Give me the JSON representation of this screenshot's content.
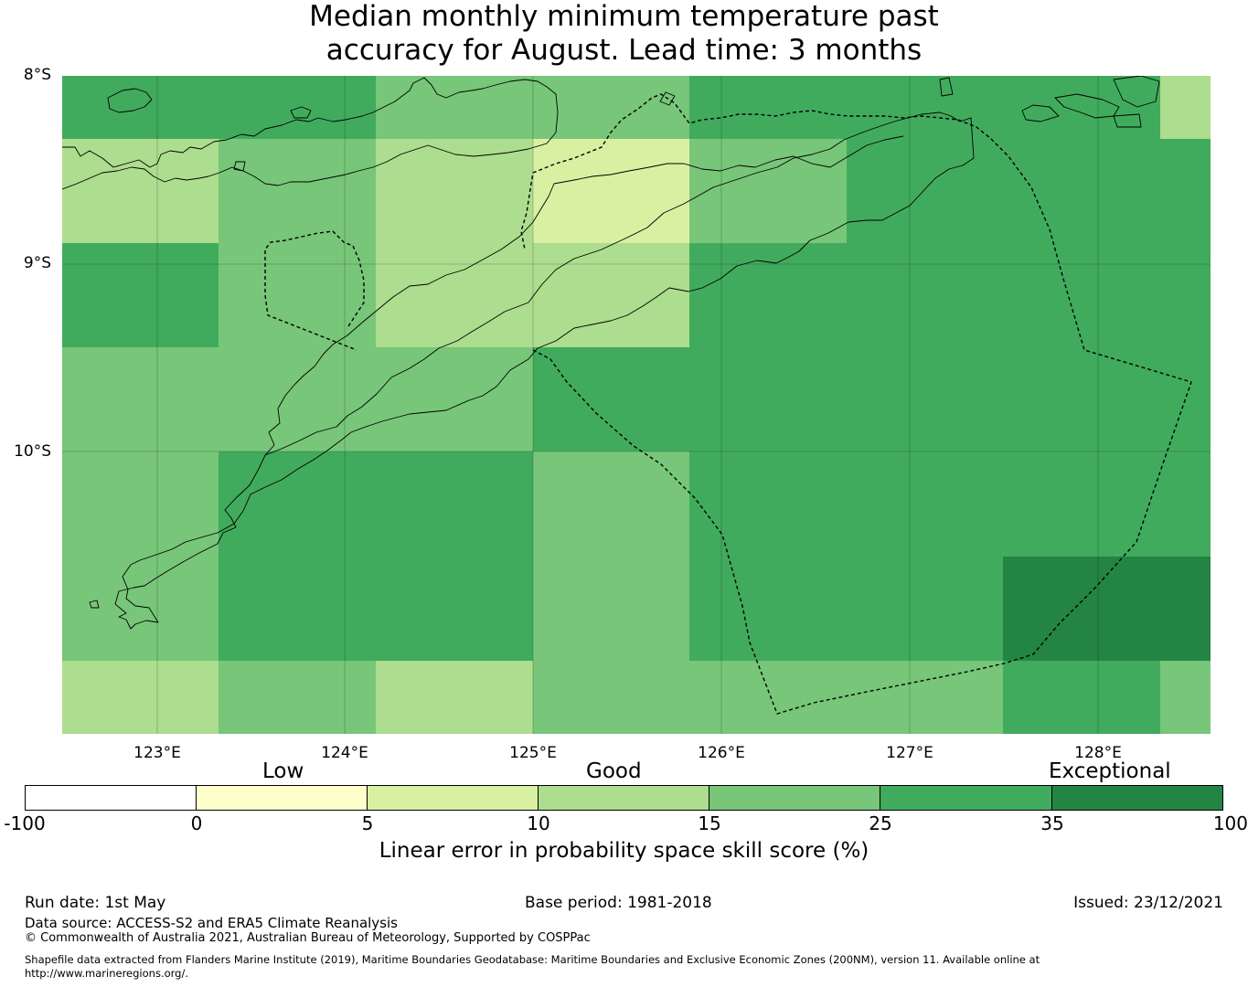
{
  "title_line1": "Median monthly minimum temperature past",
  "title_line2": "accuracy for August. Lead time: 3 months",
  "map": {
    "lat_labels": [
      "8°S",
      "9°S",
      "10°S"
    ],
    "lon_labels": [
      "123°E",
      "124°E",
      "125°E",
      "126°E",
      "127°E",
      "128°E"
    ],
    "lat_range": [
      -11.5,
      -8.0
    ],
    "lon_range": [
      122.5,
      128.6
    ],
    "gridlines": true
  },
  "colorbar": {
    "category_labels": [
      "Low",
      "Good",
      "Exceptional"
    ],
    "ticks": [
      "-100",
      "0",
      "5",
      "10",
      "15",
      "25",
      "35",
      "100"
    ],
    "colors": [
      "#ffffff",
      "#ffffcc",
      "#d9f0a3",
      "#addd8e",
      "#78c679",
      "#41ab5d",
      "#238443"
    ],
    "title": "Linear error in probability space skill score (%)"
  },
  "footer": {
    "run_date": "Run date: 1st May",
    "base_period": "Base period: 1981-2018",
    "issued": "Issued: 23/12/2021",
    "data_source": "Data source: ACCESS-S2 and ERA5 Climate Reanalysis",
    "copyright": "© Commonwealth of Australia 2021, Australian Bureau of Meteorology, Supported by COSPPac",
    "shapefile_line1": "Shapefile data extracted from Flanders Marine Institute (2019), Maritime Boundaries Geodatabase: Maritime Boundaries and Exclusive Economic Zones (200NM), version 11. Available online at",
    "shapefile_line2": "http://www.marineregions.org/."
  }
}
